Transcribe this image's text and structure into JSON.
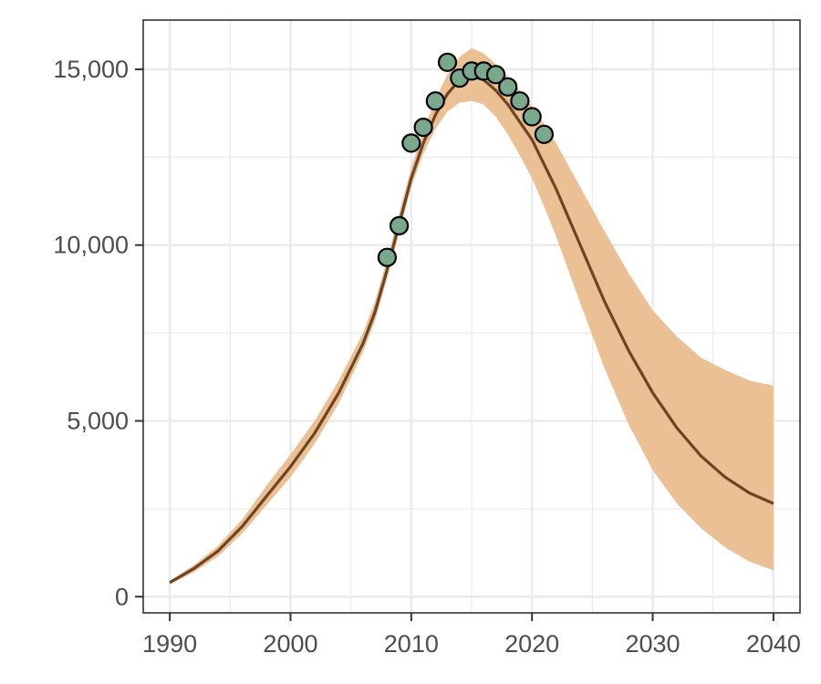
{
  "chart_data": {
    "type": "line",
    "title": "",
    "xlabel": "",
    "ylabel": "",
    "xlim": [
      1987.8,
      2042.2
    ],
    "ylim": [
      -460,
      16400
    ],
    "grid": true,
    "legend": "none",
    "x_ticks": [
      1990,
      2000,
      2010,
      2020,
      2030,
      2040
    ],
    "x_tick_labels": [
      "1990",
      "2000",
      "2010",
      "2020",
      "2030",
      "2040"
    ],
    "y_ticks": [
      0,
      5000,
      10000,
      15000
    ],
    "y_tick_labels": [
      "0",
      "5,000",
      "10,000",
      "15,000"
    ],
    "colors": {
      "line": "#6e4520",
      "ribbon": "#ebc095",
      "points_fill": "#7aa88d",
      "points_stroke": "#000000",
      "grid": "#ebebeb",
      "panel_border": "#333333"
    },
    "series": [
      {
        "type": "line",
        "x": [
          1990,
          1992,
          1994,
          1996,
          1998,
          2000,
          2002,
          2004,
          2006,
          2007,
          2008,
          2009,
          2010,
          2011,
          2012,
          2013,
          2014,
          2015,
          2016,
          2017,
          2018,
          2019,
          2020,
          2021,
          2022,
          2024,
          2026,
          2028,
          2030,
          2032,
          2034,
          2036,
          2038,
          2040
        ],
        "y": [
          400,
          800,
          1300,
          2000,
          2850,
          3700,
          4650,
          5800,
          7200,
          8100,
          9300,
          10600,
          11900,
          12900,
          13700,
          14300,
          14700,
          14800,
          14700,
          14400,
          14000,
          13500,
          13000,
          12300,
          11600,
          10000,
          8400,
          7000,
          5800,
          4800,
          4000,
          3400,
          2950,
          2650
        ]
      },
      {
        "type": "band",
        "x": [
          1990,
          1992,
          1994,
          1996,
          1998,
          2000,
          2002,
          2004,
          2006,
          2007,
          2008,
          2009,
          2010,
          2011,
          2012,
          2013,
          2014,
          2015,
          2016,
          2017,
          2018,
          2019,
          2020,
          2021,
          2022,
          2024,
          2026,
          2028,
          2030,
          2032,
          2034,
          2036,
          2038,
          2040
        ],
        "lower": [
          350,
          700,
          1150,
          1800,
          2600,
          3400,
          4350,
          5500,
          6950,
          7850,
          9050,
          10350,
          11650,
          12600,
          13300,
          13800,
          14050,
          14100,
          14000,
          13650,
          13150,
          12550,
          11900,
          11100,
          10250,
          8350,
          6500,
          4900,
          3600,
          2650,
          1950,
          1400,
          1000,
          750
        ],
        "upper": [
          450,
          900,
          1450,
          2200,
          3150,
          4050,
          5000,
          6150,
          7500,
          8400,
          9600,
          10900,
          12200,
          13250,
          14150,
          14850,
          15350,
          15600,
          15450,
          15150,
          14800,
          14400,
          13950,
          13450,
          12900,
          11650,
          10400,
          9200,
          8150,
          7400,
          6800,
          6450,
          6150,
          6000
        ]
      },
      {
        "type": "scatter",
        "x": [
          2008,
          2009,
          2010,
          2011,
          2012,
          2013,
          2014,
          2015,
          2016,
          2017,
          2018,
          2019,
          2020,
          2021
        ],
        "y": [
          9650,
          10550,
          12900,
          13350,
          14100,
          15200,
          14750,
          14950,
          14950,
          14850,
          14500,
          14100,
          13650,
          13150
        ]
      }
    ]
  }
}
